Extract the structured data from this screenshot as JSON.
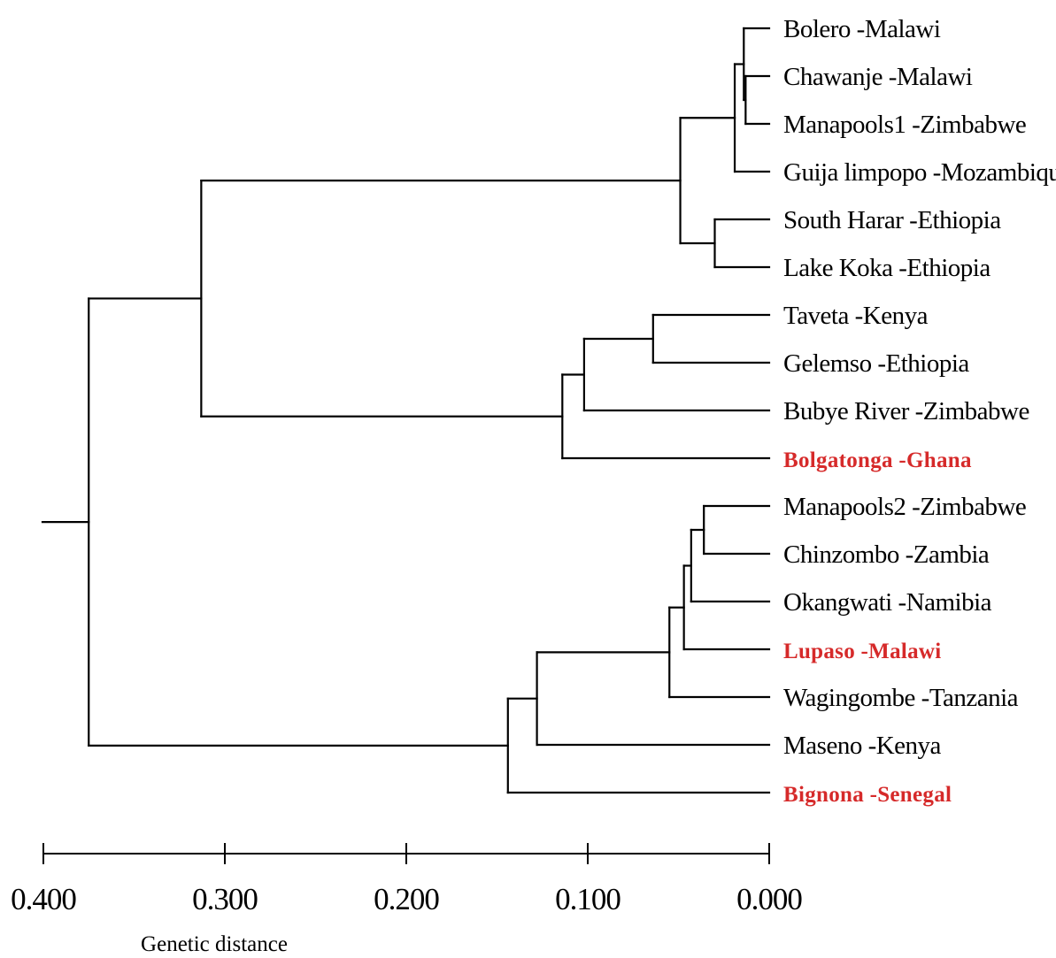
{
  "chart_data": {
    "type": "dendrogram",
    "xlabel": "Genetic distance",
    "x_axis": {
      "range": [
        0.4,
        0.0
      ],
      "reversed": true,
      "ticks": [
        0.4,
        0.3,
        0.2,
        0.1,
        0.0
      ],
      "tick_labels": [
        "0.400",
        "0.300",
        "0.200",
        "0.100",
        "0.000"
      ]
    },
    "highlight_color": "#d62a2a",
    "default_color": "#000000",
    "leaves": [
      {
        "id": "L1",
        "label": "Bolero -Malawi",
        "highlight": false
      },
      {
        "id": "L2",
        "label": "Chawanje -Malawi",
        "highlight": false
      },
      {
        "id": "L3",
        "label": "Manapools1 -Zimbabwe",
        "highlight": false
      },
      {
        "id": "L4",
        "label": "Guija limpopo -Mozambique",
        "highlight": false
      },
      {
        "id": "L5",
        "label": "South Harar  -Ethiopia",
        "highlight": false
      },
      {
        "id": "L6",
        "label": "Lake Koka  -Ethiopia",
        "highlight": false
      },
      {
        "id": "L7",
        "label": "Taveta -Kenya",
        "highlight": false
      },
      {
        "id": "L8",
        "label": "Gelemso  -Ethiopia",
        "highlight": false
      },
      {
        "id": "L9",
        "label": "Bubye River -Zimbabwe",
        "highlight": false
      },
      {
        "id": "L10",
        "label": "Bolgatonga -Ghana",
        "highlight": true
      },
      {
        "id": "L11",
        "label": "Manapools2 -Zimbabwe",
        "highlight": false
      },
      {
        "id": "L12",
        "label": "Chinzombo -Zambia",
        "highlight": false
      },
      {
        "id": "L13",
        "label": "Okangwati  -Namibia",
        "highlight": false
      },
      {
        "id": "L14",
        "label": "Lupaso -Malawi",
        "highlight": true
      },
      {
        "id": "L15",
        "label": "Wagingombe  -Tanzania",
        "highlight": false
      },
      {
        "id": "L16",
        "label": "Maseno  -Kenya",
        "highlight": false
      },
      {
        "id": "L17",
        "label": "Bignona -Senegal",
        "highlight": true
      }
    ],
    "clusters": [
      {
        "id": "n1",
        "height": 0.013,
        "children": [
          "L2",
          "L3"
        ]
      },
      {
        "id": "n2",
        "height": 0.014,
        "children": [
          "L1",
          "n1"
        ]
      },
      {
        "id": "n3",
        "height": 0.019,
        "children": [
          "n2",
          "L4"
        ]
      },
      {
        "id": "n4",
        "height": 0.03,
        "children": [
          "L5",
          "L6"
        ]
      },
      {
        "id": "n5",
        "height": 0.049,
        "children": [
          "n3",
          "n4"
        ]
      },
      {
        "id": "n6",
        "height": 0.064,
        "children": [
          "L7",
          "L8"
        ]
      },
      {
        "id": "n7",
        "height": 0.102,
        "children": [
          "n6",
          "L9"
        ]
      },
      {
        "id": "n8",
        "height": 0.114,
        "children": [
          "n7",
          "L10"
        ]
      },
      {
        "id": "n9",
        "height": 0.313,
        "children": [
          "n5",
          "n8"
        ]
      },
      {
        "id": "n10",
        "height": 0.036,
        "children": [
          "L11",
          "L12"
        ]
      },
      {
        "id": "n11",
        "height": 0.043,
        "children": [
          "n10",
          "L13"
        ]
      },
      {
        "id": "n12",
        "height": 0.047,
        "children": [
          "n11",
          "L14"
        ]
      },
      {
        "id": "n13",
        "height": 0.055,
        "children": [
          "n12",
          "L15"
        ]
      },
      {
        "id": "n14",
        "height": 0.128,
        "children": [
          "n13",
          "L16"
        ]
      },
      {
        "id": "n15",
        "height": 0.144,
        "children": [
          "n14",
          "L17"
        ]
      },
      {
        "id": "n16",
        "height": 0.375,
        "children": [
          "n9",
          "n15"
        ]
      }
    ],
    "root": "n16"
  }
}
